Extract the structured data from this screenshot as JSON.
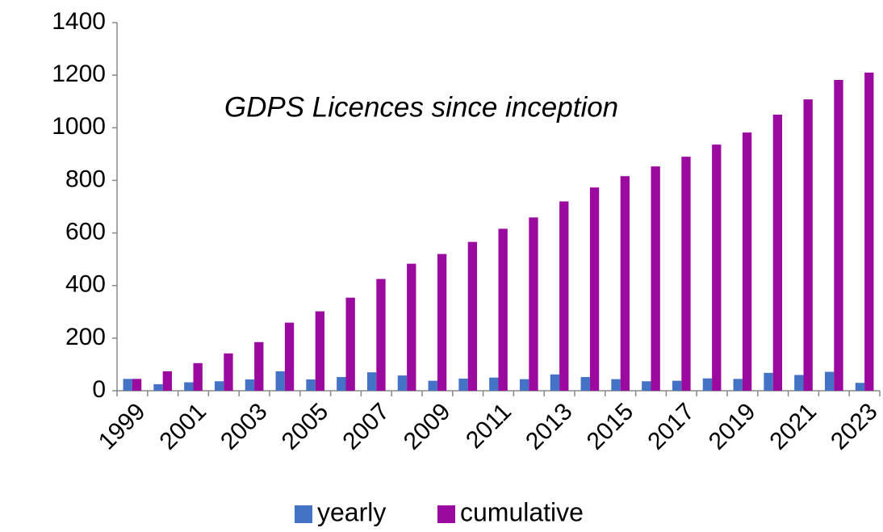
{
  "chart_data": {
    "type": "bar",
    "title": "GDPS Licences since inception",
    "categories": [
      "1999",
      null,
      "2001",
      null,
      "2003",
      null,
      "2005",
      null,
      "2007",
      null,
      "2009",
      null,
      "2011",
      null,
      "2013",
      null,
      "2015",
      null,
      "2017",
      null,
      "2019",
      null,
      "2021",
      null,
      "2023"
    ],
    "series": [
      {
        "name": "yearly",
        "color": "#4472c4",
        "values": [
          45,
          25,
          32,
          36,
          43,
          74,
          43,
          52,
          70,
          58,
          38,
          46,
          50,
          44,
          62,
          52,
          44,
          36,
          38,
          47,
          45,
          68,
          60,
          72,
          30
        ]
      },
      {
        "name": "cumulative",
        "color": "#9b0a9f",
        "values": [
          45,
          74,
          105,
          142,
          185,
          259,
          302,
          354,
          425,
          483,
          520,
          566,
          616,
          659,
          720,
          773,
          816,
          853,
          890,
          936,
          982,
          1050,
          1108,
          1182,
          1210
        ]
      }
    ],
    "ylim": [
      0,
      1400
    ],
    "yticks": [
      0,
      200,
      400,
      600,
      800,
      1000,
      1200,
      1400
    ],
    "grid": false,
    "legend": "bottom"
  }
}
